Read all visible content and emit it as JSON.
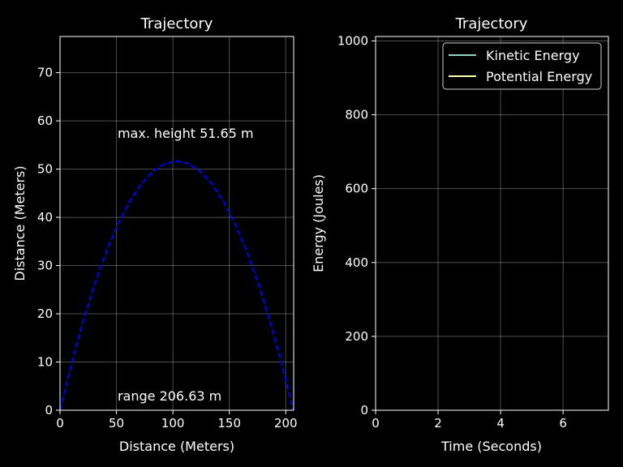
{
  "chart_data": [
    {
      "type": "line",
      "title": "Trajectory",
      "xlabel": "Distance (Meters)",
      "ylabel": "Distance (Meters)",
      "xlim": [
        0,
        207
      ],
      "ylim": [
        0,
        77.5
      ],
      "xticks": [
        0,
        50,
        100,
        150,
        200
      ],
      "yticks": [
        0,
        10,
        20,
        30,
        40,
        50,
        60,
        70
      ],
      "grid": true,
      "series": [
        {
          "style": "dashed",
          "color": "#0000ff",
          "x": [
            0,
            10.33,
            20.66,
            30.99,
            41.33,
            51.66,
            61.99,
            72.32,
            82.65,
            92.98,
            103.32,
            113.65,
            123.98,
            134.31,
            144.64,
            154.97,
            165.3,
            175.64,
            185.97,
            196.3,
            206.63
          ],
          "y": [
            0,
            9.81,
            18.59,
            26.34,
            33.06,
            38.74,
            43.39,
            47.0,
            49.58,
            51.13,
            51.65,
            51.13,
            49.58,
            47.0,
            43.39,
            38.74,
            33.06,
            26.34,
            18.59,
            9.81,
            0
          ]
        }
      ],
      "annotations": [
        {
          "text": "max. height 51.65 m",
          "x": 51,
          "y": 56.5
        },
        {
          "text": "range 206.63 m",
          "x": 51,
          "y": 2
        }
      ]
    },
    {
      "type": "line",
      "title": "Trajectory",
      "xlabel": "Time (Seconds)",
      "ylabel": "Energy (Joules)",
      "xlim": [
        0,
        7.45
      ],
      "ylim": [
        0,
        1012
      ],
      "xticks": [
        0,
        2,
        4,
        6
      ],
      "yticks": [
        0,
        200,
        400,
        600,
        800,
        1000
      ],
      "grid": true,
      "legend": "top-right",
      "series": [
        {
          "name": "Kinetic Energy",
          "color": "#8dd3c7",
          "x": [],
          "y": []
        },
        {
          "name": "Potential Energy",
          "color": "#ffffb3",
          "x": [],
          "y": []
        }
      ]
    }
  ]
}
